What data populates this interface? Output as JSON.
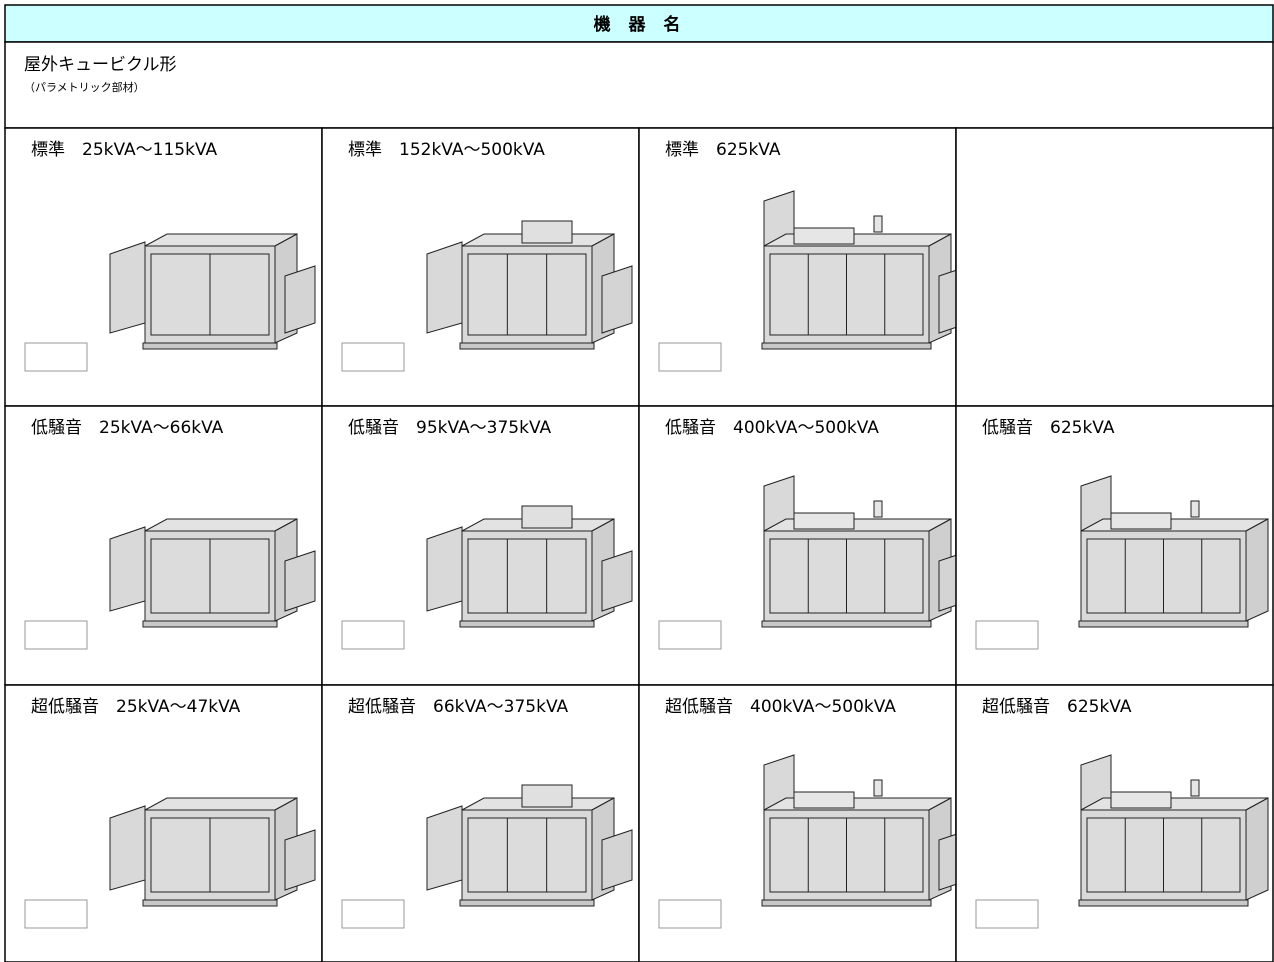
{
  "header": {
    "title": "機 器 名"
  },
  "section": {
    "title": "屋外キュービクル形",
    "subtitle": "（パラメトリック部材）"
  },
  "table": {
    "rows": [
      [
        "標準　25kVA～115kVA",
        "標準　152kVA～500kVA",
        "標準　625kVA"
      ],
      [
        "低騒音　25kVA～66kVA",
        "低騒音　95kVA～375kVA",
        "低騒音　400kVA～500kVA",
        "低騒音　625kVA"
      ],
      [
        "超低騒音　25kVA～47kVA",
        "超低騒音　66kVA～375kVA",
        "超低騒音　400kVA～500kVA",
        "超低騒音　625kVA"
      ]
    ]
  }
}
